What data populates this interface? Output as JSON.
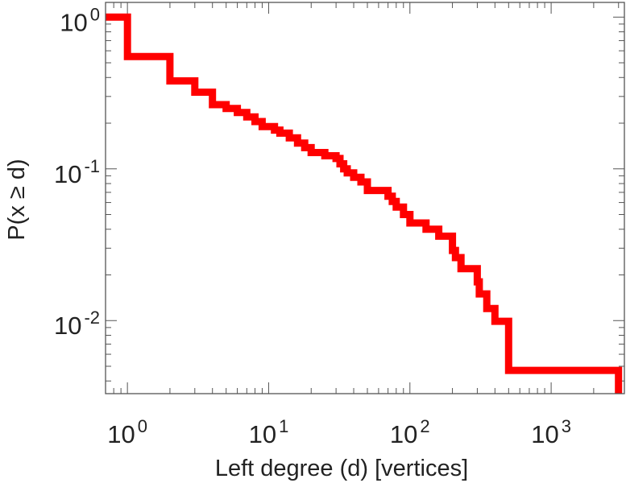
{
  "chart_data": {
    "type": "line",
    "style": "step",
    "xscale": "log",
    "yscale": "log",
    "xlim": [
      0.7,
      3300
    ],
    "ylim": [
      0.0033,
      1.25
    ],
    "xlabel": "Left degree (d) [vertices]",
    "ylabel": "P(x ≥ d)",
    "xticks": [
      {
        "value": 1,
        "base": "10",
        "exp": "0"
      },
      {
        "value": 10,
        "base": "10",
        "exp": "1"
      },
      {
        "value": 100,
        "base": "10",
        "exp": "2"
      },
      {
        "value": 1000,
        "base": "10",
        "exp": "3"
      }
    ],
    "yticks": [
      {
        "value": 1,
        "base": "10",
        "exp": "0"
      },
      {
        "value": 0.1,
        "base": "10",
        "exp": "-1"
      },
      {
        "value": 0.01,
        "base": "10",
        "exp": "-2"
      }
    ],
    "grid": false,
    "series": [
      {
        "color": "#ff0000",
        "x": [
          0.7,
          1,
          2,
          3,
          4,
          5,
          6,
          7,
          8,
          9,
          11,
          12,
          14,
          16,
          18,
          20,
          25,
          30,
          32,
          34,
          36,
          40,
          45,
          50,
          70,
          75,
          80,
          90,
          100,
          130,
          160,
          200,
          210,
          230,
          300,
          310,
          350,
          400,
          500,
          1000,
          2000,
          3000
        ],
        "y": [
          1.0,
          0.55,
          0.38,
          0.32,
          0.265,
          0.25,
          0.235,
          0.22,
          0.205,
          0.19,
          0.18,
          0.172,
          0.16,
          0.148,
          0.138,
          0.128,
          0.122,
          0.117,
          0.108,
          0.1,
          0.094,
          0.088,
          0.082,
          0.072,
          0.066,
          0.061,
          0.056,
          0.05,
          0.044,
          0.04,
          0.036,
          0.029,
          0.026,
          0.022,
          0.018,
          0.015,
          0.012,
          0.0099,
          0.0047,
          0.0047,
          0.0047,
          0.0033
        ]
      }
    ]
  }
}
